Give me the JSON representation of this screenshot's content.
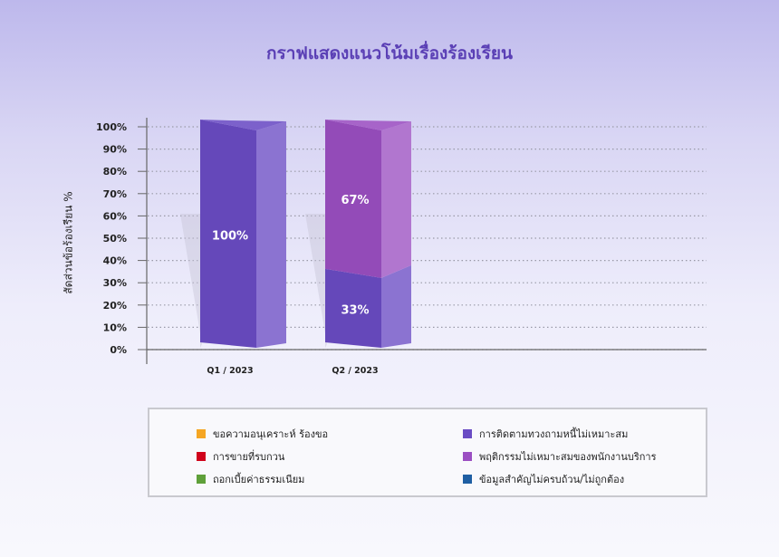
{
  "chart_data": {
    "type": "bar",
    "title": "กราฟแสดงแนวโน้มเรื่องร้องเรียน",
    "ylabel": "สัดส่วนข้อร้องเรียน %",
    "xlabel": "",
    "ylim": [
      0,
      100
    ],
    "yticks": [
      "0%",
      "10%",
      "20%",
      "30%",
      "40%",
      "50%",
      "60%",
      "70%",
      "80%",
      "90%",
      "100%"
    ],
    "categories": [
      "Q1 / 2023",
      "Q2 / 2023"
    ],
    "stacked": true,
    "grid": true,
    "legend_position": "bottom",
    "series": [
      {
        "name": "ขอความอนุเคราะห์ ร้องขอ",
        "color": "#f5a623",
        "values": [
          0,
          0
        ]
      },
      {
        "name": "การติดตามทวงถามหนี้ไม่เหมาะสม",
        "color": "#6a4cc4",
        "values": [
          100,
          33
        ]
      },
      {
        "name": "การขายที่รบกวน",
        "color": "#d0021b",
        "values": [
          0,
          0
        ]
      },
      {
        "name": "พฤติกรรมไม่เหมาะสมของพนักงานบริการ",
        "color": "#9b4fc2",
        "values": [
          0,
          67
        ]
      },
      {
        "name": "ถอกเบี้ยค่าธรรมเนียม",
        "color": "#5fa03a",
        "values": [
          0,
          0
        ]
      },
      {
        "name": "ข้อมูลสำคัญไม่ครบถ้วน/ไม่ถูกต้อง",
        "color": "#1f5fa3",
        "values": [
          0,
          0
        ]
      }
    ],
    "data_labels": [
      {
        "category": "Q1 / 2023",
        "series": "การติดตามทวงถามหนี้ไม่เหมาะสม",
        "text": "100%"
      },
      {
        "category": "Q2 / 2023",
        "series": "พฤติกรรมไม่เหมาะสมของพนักงานบริการ",
        "text": "67%"
      },
      {
        "category": "Q2 / 2023",
        "series": "การติดตามทวงถามหนี้ไม่เหมาะสม",
        "text": "33%"
      }
    ]
  }
}
